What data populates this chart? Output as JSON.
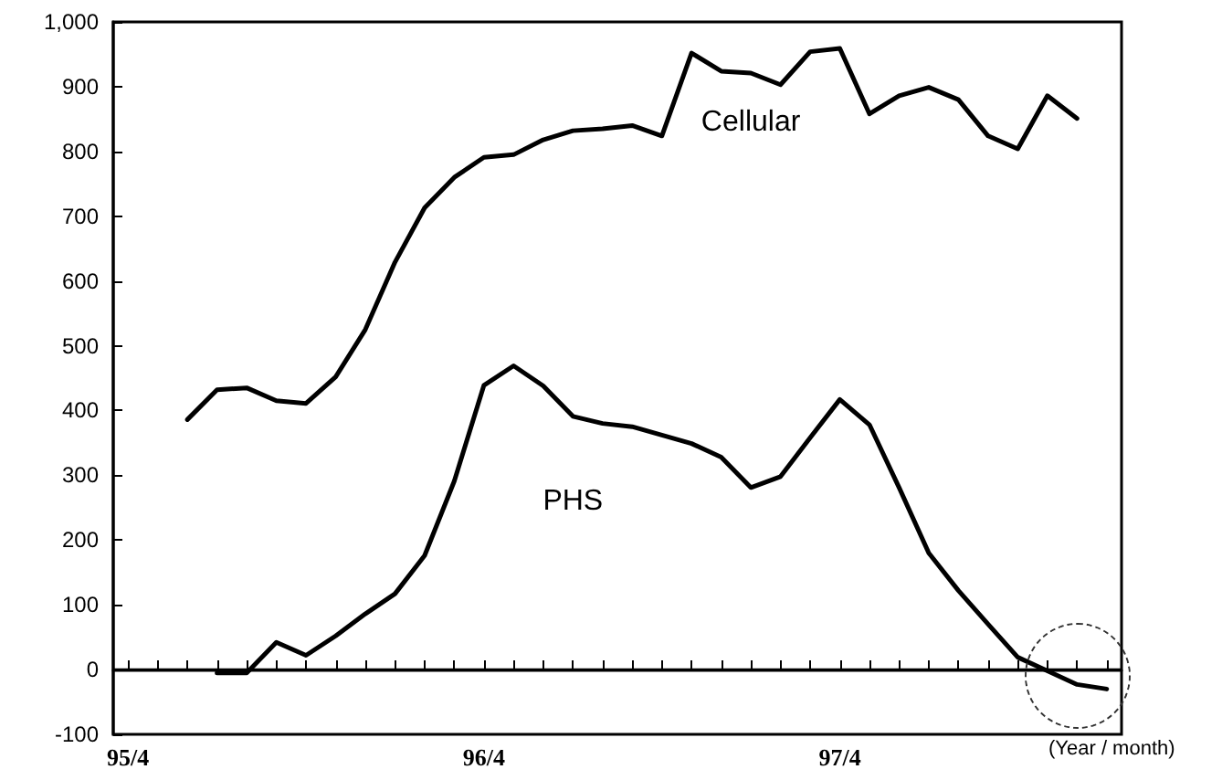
{
  "chart_data": {
    "type": "line",
    "xlabel": "(Year / month)",
    "categories": [
      "95/4",
      null,
      null,
      null,
      null,
      null,
      null,
      null,
      null,
      null,
      null,
      null,
      "96/4",
      null,
      null,
      null,
      null,
      null,
      null,
      null,
      null,
      null,
      null,
      null,
      "97/4",
      null,
      null,
      null,
      null,
      null,
      null,
      null,
      null,
      null
    ],
    "series": [
      {
        "name": "Cellular",
        "color": "#000000",
        "values": [
          null,
          null,
          386,
          432,
          435,
          415,
          411,
          452,
          525,
          629,
          713,
          760,
          791,
          795,
          818,
          832,
          835,
          840,
          824,
          952,
          924,
          921,
          903,
          954,
          959,
          858,
          886,
          899,
          880,
          824,
          804,
          886,
          851,
          null
        ]
      },
      {
        "name": "PHS",
        "color": "#000000",
        "values": [
          null,
          null,
          null,
          -5,
          -5,
          42,
          22,
          52,
          86,
          117,
          176,
          291,
          439,
          469,
          438,
          391,
          380,
          375,
          362,
          349,
          328,
          281,
          298,
          358,
          417,
          378,
          281,
          180,
          122,
          70,
          19,
          -2,
          -23,
          -30
        ]
      }
    ],
    "ylim": [
      -100,
      1000
    ],
    "yticks": [
      -100,
      0,
      100,
      200,
      300,
      400,
      500,
      600,
      700,
      800,
      900,
      {
        "value": 1000,
        "label": "1,000"
      }
    ],
    "ref_lines": [
      {
        "axis": "y",
        "value": 0,
        "color": "#000000",
        "line_style": "solid"
      }
    ],
    "grid": false,
    "legend": false,
    "marker": "none",
    "line_style": "solid"
  }
}
